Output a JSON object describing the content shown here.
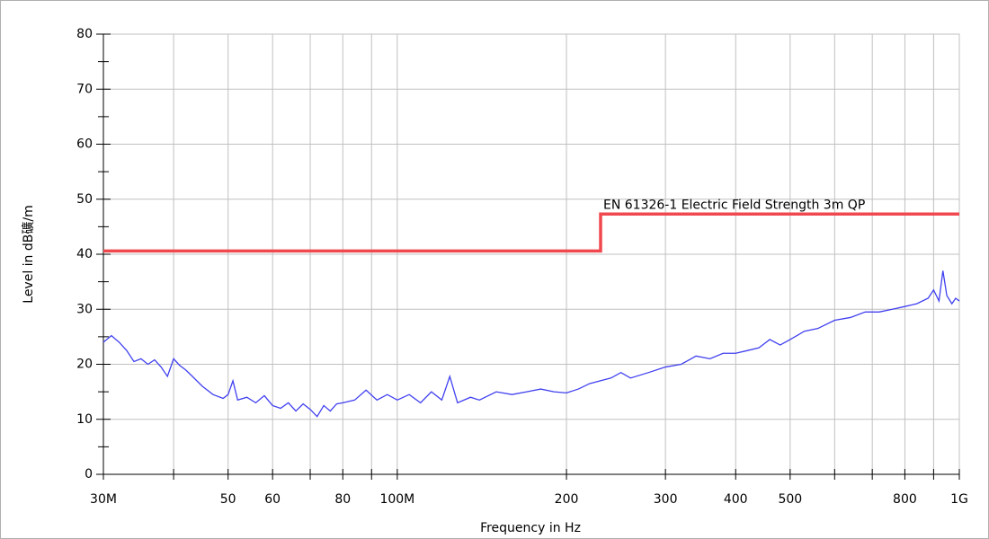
{
  "chart_data": {
    "type": "line",
    "xlabel": "Frequency in Hz",
    "ylabel": "Level in dB礦/m",
    "xscale": "log",
    "xlim": [
      30000000.0,
      1000000000.0
    ],
    "ylim": [
      0,
      80
    ],
    "xticks": [
      {
        "value": 30000000.0,
        "label": "30M"
      },
      {
        "value": 50000000.0,
        "label": "50"
      },
      {
        "value": 60000000.0,
        "label": "60"
      },
      {
        "value": 80000000.0,
        "label": "80"
      },
      {
        "value": 100000000.0,
        "label": "100M"
      },
      {
        "value": 200000000.0,
        "label": "200"
      },
      {
        "value": 300000000.0,
        "label": "300"
      },
      {
        "value": 400000000.0,
        "label": "400"
      },
      {
        "value": 500000000.0,
        "label": "500"
      },
      {
        "value": 800000000.0,
        "label": "800"
      },
      {
        "value": 1000000000.0,
        "label": "1G"
      }
    ],
    "xminor_ticks": [
      40000000.0,
      70000000.0,
      90000000.0,
      600000000.0,
      700000000.0,
      900000000.0
    ],
    "yticks": [
      0,
      10,
      20,
      30,
      40,
      50,
      60,
      70,
      80
    ],
    "yminor_ticks": [
      5,
      15,
      25,
      35,
      45,
      55,
      65,
      75
    ],
    "grid": true,
    "series": [
      {
        "name": "EN 61326-1 Electric Field Strength 3m QP",
        "color": "#f0484e",
        "x": [
          30000000.0,
          230000000.0,
          230000000.0,
          1000000000.0
        ],
        "values": [
          40.6,
          40.6,
          47.3,
          47.3
        ]
      },
      {
        "color": "#4040f0",
        "x": [
          30000000.0,
          31000000.0,
          32000000.0,
          33000000.0,
          34000000.0,
          35000000.0,
          36000000.0,
          37000000.0,
          38000000.0,
          39000000.0,
          40000000.0,
          41000000.0,
          42000000.0,
          43000000.0,
          45000000.0,
          47000000.0,
          49000000.0,
          50000000.0,
          51000000.0,
          52000000.0,
          54000000.0,
          56000000.0,
          58000000.0,
          60000000.0,
          62000000.0,
          64000000.0,
          66000000.0,
          68000000.0,
          70000000.0,
          72000000.0,
          74000000.0,
          76000000.0,
          78000000.0,
          80000000.0,
          84000000.0,
          88000000.0,
          92000000.0,
          96000000.0,
          100000000.0,
          105000000.0,
          110000000.0,
          115000000.0,
          120000000.0,
          124000000.0,
          128000000.0,
          135000000.0,
          140000000.0,
          150000000.0,
          160000000.0,
          170000000.0,
          180000000.0,
          190000000.0,
          200000000.0,
          210000000.0,
          220000000.0,
          240000000.0,
          250000000.0,
          260000000.0,
          280000000.0,
          300000000.0,
          320000000.0,
          340000000.0,
          360000000.0,
          380000000.0,
          400000000.0,
          420000000.0,
          440000000.0,
          460000000.0,
          480000000.0,
          500000000.0,
          530000000.0,
          560000000.0,
          600000000.0,
          640000000.0,
          680000000.0,
          720000000.0,
          760000000.0,
          800000000.0,
          840000000.0,
          880000000.0,
          900000000.0,
          920000000.0,
          935000000.0,
          950000000.0,
          970000000.0,
          985000000.0,
          1000000000.0
        ],
        "values": [
          24,
          25.2,
          24,
          22.5,
          20.5,
          21,
          20,
          20.8,
          19.5,
          17.8,
          21,
          19.8,
          19,
          18,
          16,
          14.5,
          13.8,
          14.5,
          17,
          13.5,
          14,
          13,
          14.3,
          12.5,
          12,
          13,
          11.5,
          12.8,
          11.8,
          10.5,
          12.5,
          11.5,
          12.8,
          13,
          13.5,
          15.3,
          13.5,
          14.5,
          13.5,
          14.5,
          13,
          15,
          13.5,
          17.8,
          13,
          14,
          13.5,
          15,
          14.5,
          15,
          15.5,
          15,
          14.8,
          15.5,
          16.5,
          17.5,
          18.5,
          17.5,
          18.5,
          19.5,
          20,
          21.5,
          21,
          22,
          22,
          22.5,
          23,
          24.5,
          23.5,
          24.5,
          26,
          26.5,
          28,
          28.5,
          29.5,
          29.5,
          30,
          30.5,
          31,
          32,
          33.5,
          31.5,
          37,
          32.5,
          31,
          32,
          31.5
        ]
      }
    ]
  }
}
